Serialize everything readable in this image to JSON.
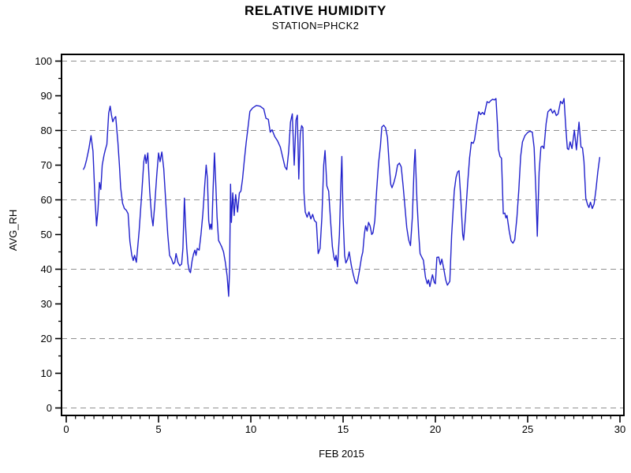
{
  "window": {
    "background": "#ffffff"
  },
  "chart_data": {
    "type": "line",
    "title": "RELATIVE HUMIDITY",
    "subtitle": "STATION=PHCK2",
    "xlabel": "FEB 2015",
    "ylabel": "AVG_RH",
    "xlim": [
      0,
      30
    ],
    "ylim": [
      0,
      100
    ],
    "x_major_ticks": [
      0,
      5,
      10,
      15,
      20,
      25,
      30
    ],
    "x_major_tick_labels": [
      "0",
      "5",
      "10",
      "15",
      "20",
      "25",
      "30"
    ],
    "x_minor_tick_step": 0.5,
    "y_major_ticks": [
      0,
      10,
      20,
      30,
      40,
      50,
      60,
      70,
      80,
      90,
      100
    ],
    "y_major_tick_labels": [
      "0",
      "10",
      "20",
      "30",
      "40",
      "50",
      "60",
      "70",
      "80",
      "90",
      "100"
    ],
    "y_minor_tick_step": 5,
    "y_gridlines": [
      0,
      20,
      40,
      60,
      80,
      100
    ],
    "grid_style": "dashed",
    "legend": "none",
    "colors": {
      "line": "#2222cc",
      "grid": "#909090",
      "axis": "#000000",
      "text": "#000000",
      "background": "#ffffff"
    },
    "series": [
      {
        "name": "AVG_RH",
        "x_unit": "day of FEB 2015",
        "points": [
          [
            0.93,
            68.8
          ],
          [
            1.0,
            69.5
          ],
          [
            1.1,
            71.5
          ],
          [
            1.22,
            74.5
          ],
          [
            1.34,
            78.5
          ],
          [
            1.45,
            74.0
          ],
          [
            1.55,
            61.0
          ],
          [
            1.64,
            52.5
          ],
          [
            1.72,
            57.0
          ],
          [
            1.8,
            65.0
          ],
          [
            1.87,
            63.0
          ],
          [
            1.95,
            70.0
          ],
          [
            2.05,
            73.0
          ],
          [
            2.12,
            74.5
          ],
          [
            2.2,
            76.0
          ],
          [
            2.3,
            85.0
          ],
          [
            2.38,
            87.0
          ],
          [
            2.45,
            84.5
          ],
          [
            2.52,
            82.5
          ],
          [
            2.6,
            83.5
          ],
          [
            2.68,
            84.0
          ],
          [
            2.8,
            76.5
          ],
          [
            2.88,
            70.0
          ],
          [
            2.95,
            63.5
          ],
          [
            3.05,
            59.0
          ],
          [
            3.15,
            57.5
          ],
          [
            3.25,
            57.0
          ],
          [
            3.35,
            56.0
          ],
          [
            3.45,
            48.0
          ],
          [
            3.55,
            44.0
          ],
          [
            3.63,
            42.5
          ],
          [
            3.7,
            44.0
          ],
          [
            3.8,
            42.0
          ],
          [
            3.95,
            51.0
          ],
          [
            4.1,
            62.5
          ],
          [
            4.2,
            71.0
          ],
          [
            4.27,
            73.0
          ],
          [
            4.33,
            70.5
          ],
          [
            4.42,
            73.5
          ],
          [
            4.52,
            62.5
          ],
          [
            4.62,
            55.5
          ],
          [
            4.7,
            52.5
          ],
          [
            4.8,
            59.0
          ],
          [
            4.9,
            67.0
          ],
          [
            5.0,
            73.5
          ],
          [
            5.08,
            71.0
          ],
          [
            5.18,
            73.8
          ],
          [
            5.28,
            69.0
          ],
          [
            5.35,
            63.0
          ],
          [
            5.42,
            57.0
          ],
          [
            5.5,
            50.0
          ],
          [
            5.6,
            44.0
          ],
          [
            5.7,
            43.0
          ],
          [
            5.8,
            41.5
          ],
          [
            5.88,
            42.0
          ],
          [
            5.95,
            44.5
          ],
          [
            6.05,
            42.0
          ],
          [
            6.15,
            41.0
          ],
          [
            6.25,
            41.5
          ],
          [
            6.32,
            46.0
          ],
          [
            6.4,
            60.5
          ],
          [
            6.47,
            52.0
          ],
          [
            6.53,
            46.0
          ],
          [
            6.6,
            41.5
          ],
          [
            6.67,
            39.5
          ],
          [
            6.73,
            39.0
          ],
          [
            6.82,
            42.5
          ],
          [
            6.9,
            44.5
          ],
          [
            6.97,
            45.5
          ],
          [
            7.03,
            44.0
          ],
          [
            7.1,
            46.0
          ],
          [
            7.2,
            45.5
          ],
          [
            7.3,
            50.0
          ],
          [
            7.4,
            56.0
          ],
          [
            7.5,
            64.0
          ],
          [
            7.58,
            70.0
          ],
          [
            7.65,
            66.0
          ],
          [
            7.72,
            54.0
          ],
          [
            7.78,
            51.5
          ],
          [
            7.83,
            53.0
          ],
          [
            7.89,
            51.5
          ],
          [
            7.95,
            62.0
          ],
          [
            8.03,
            73.5
          ],
          [
            8.1,
            65.0
          ],
          [
            8.17,
            55.0
          ],
          [
            8.25,
            48.3
          ],
          [
            8.33,
            47.5
          ],
          [
            8.42,
            46.5
          ],
          [
            8.52,
            45.0
          ],
          [
            8.62,
            42.0
          ],
          [
            8.72,
            38.0
          ],
          [
            8.8,
            32.2
          ],
          [
            8.85,
            40.0
          ],
          [
            8.9,
            64.5
          ],
          [
            8.95,
            53.5
          ],
          [
            9.02,
            62.0
          ],
          [
            9.1,
            55.5
          ],
          [
            9.18,
            61.5
          ],
          [
            9.28,
            56.5
          ],
          [
            9.38,
            62.0
          ],
          [
            9.46,
            62.5
          ],
          [
            9.55,
            66.0
          ],
          [
            9.65,
            71.5
          ],
          [
            9.75,
            76.5
          ],
          [
            9.85,
            81.0
          ],
          [
            9.95,
            85.5
          ],
          [
            10.1,
            86.5
          ],
          [
            10.3,
            87.2
          ],
          [
            10.5,
            87.0
          ],
          [
            10.7,
            86.2
          ],
          [
            10.82,
            83.5
          ],
          [
            10.95,
            83.2
          ],
          [
            11.05,
            79.5
          ],
          [
            11.15,
            80.2
          ],
          [
            11.3,
            78.2
          ],
          [
            11.45,
            77.0
          ],
          [
            11.6,
            75.2
          ],
          [
            11.72,
            72.5
          ],
          [
            11.85,
            69.5
          ],
          [
            11.95,
            68.7
          ],
          [
            12.05,
            74.0
          ],
          [
            12.15,
            82.4
          ],
          [
            12.25,
            84.8
          ],
          [
            12.35,
            70.0
          ],
          [
            12.45,
            83.0
          ],
          [
            12.52,
            84.4
          ],
          [
            12.6,
            66.0
          ],
          [
            12.68,
            79.0
          ],
          [
            12.75,
            81.4
          ],
          [
            12.82,
            80.8
          ],
          [
            12.88,
            62.0
          ],
          [
            12.95,
            56.5
          ],
          [
            13.05,
            55.0
          ],
          [
            13.15,
            56.5
          ],
          [
            13.25,
            54.5
          ],
          [
            13.35,
            55.8
          ],
          [
            13.45,
            54.0
          ],
          [
            13.55,
            53.5
          ],
          [
            13.65,
            44.5
          ],
          [
            13.75,
            46.0
          ],
          [
            13.85,
            55.0
          ],
          [
            13.95,
            70.0
          ],
          [
            14.02,
            74.2
          ],
          [
            14.12,
            64.0
          ],
          [
            14.22,
            62.5
          ],
          [
            14.32,
            54.0
          ],
          [
            14.42,
            46.5
          ],
          [
            14.5,
            43.5
          ],
          [
            14.56,
            42.5
          ],
          [
            14.62,
            44.0
          ],
          [
            14.7,
            40.7
          ],
          [
            14.8,
            50.0
          ],
          [
            14.88,
            65.0
          ],
          [
            14.93,
            72.5
          ],
          [
            15.0,
            55.0
          ],
          [
            15.08,
            44.0
          ],
          [
            15.15,
            41.8
          ],
          [
            15.25,
            43.0
          ],
          [
            15.33,
            45.0
          ],
          [
            15.45,
            41.0
          ],
          [
            15.55,
            38.5
          ],
          [
            15.65,
            36.5
          ],
          [
            15.75,
            35.8
          ],
          [
            15.88,
            39.5
          ],
          [
            16.0,
            43.5
          ],
          [
            16.07,
            45.0
          ],
          [
            16.15,
            50.0
          ],
          [
            16.22,
            52.5
          ],
          [
            16.3,
            51.0
          ],
          [
            16.38,
            53.5
          ],
          [
            16.46,
            52.5
          ],
          [
            16.55,
            50.0
          ],
          [
            16.62,
            50.5
          ],
          [
            16.72,
            54.0
          ],
          [
            16.82,
            63.0
          ],
          [
            16.92,
            70.5
          ],
          [
            17.02,
            75.5
          ],
          [
            17.1,
            81.0
          ],
          [
            17.2,
            81.5
          ],
          [
            17.3,
            80.8
          ],
          [
            17.4,
            78.0
          ],
          [
            17.5,
            70.0
          ],
          [
            17.58,
            64.5
          ],
          [
            17.65,
            63.5
          ],
          [
            17.75,
            65.0
          ],
          [
            17.85,
            67.0
          ],
          [
            17.95,
            70.0
          ],
          [
            18.05,
            70.6
          ],
          [
            18.15,
            69.5
          ],
          [
            18.25,
            64.0
          ],
          [
            18.35,
            58.0
          ],
          [
            18.45,
            52.0
          ],
          [
            18.55,
            48.5
          ],
          [
            18.65,
            46.8
          ],
          [
            18.75,
            55.0
          ],
          [
            18.85,
            70.0
          ],
          [
            18.9,
            74.5
          ],
          [
            19.0,
            60.0
          ],
          [
            19.1,
            50.0
          ],
          [
            19.17,
            44.5
          ],
          [
            19.27,
            43.4
          ],
          [
            19.35,
            42.6
          ],
          [
            19.46,
            37.7
          ],
          [
            19.56,
            35.8
          ],
          [
            19.63,
            36.9
          ],
          [
            19.7,
            35.0
          ],
          [
            19.84,
            38.4
          ],
          [
            19.94,
            36.2
          ],
          [
            20.0,
            35.8
          ],
          [
            20.08,
            43.4
          ],
          [
            20.18,
            43.5
          ],
          [
            20.27,
            41.3
          ],
          [
            20.35,
            42.9
          ],
          [
            20.46,
            39.9
          ],
          [
            20.56,
            36.9
          ],
          [
            20.65,
            35.4
          ],
          [
            20.78,
            36.5
          ],
          [
            20.88,
            49.8
          ],
          [
            20.95,
            56.0
          ],
          [
            21.02,
            62.5
          ],
          [
            21.12,
            66.5
          ],
          [
            21.2,
            68.0
          ],
          [
            21.28,
            68.4
          ],
          [
            21.38,
            60.0
          ],
          [
            21.48,
            50.0
          ],
          [
            21.53,
            48.4
          ],
          [
            21.63,
            55.0
          ],
          [
            21.75,
            65.0
          ],
          [
            21.85,
            72.0
          ],
          [
            21.95,
            76.6
          ],
          [
            22.05,
            76.3
          ],
          [
            22.12,
            77.3
          ],
          [
            22.25,
            82.0
          ],
          [
            22.35,
            85.4
          ],
          [
            22.45,
            84.6
          ],
          [
            22.55,
            85.2
          ],
          [
            22.65,
            84.6
          ],
          [
            22.8,
            88.3
          ],
          [
            22.9,
            88.0
          ],
          [
            23.0,
            88.6
          ],
          [
            23.1,
            89.0
          ],
          [
            23.2,
            88.8
          ],
          [
            23.28,
            89.2
          ],
          [
            23.36,
            82.0
          ],
          [
            23.42,
            74.5
          ],
          [
            23.5,
            72.5
          ],
          [
            23.58,
            72.0
          ],
          [
            23.68,
            56.0
          ],
          [
            23.76,
            56.2
          ],
          [
            23.82,
            54.8
          ],
          [
            23.88,
            55.5
          ],
          [
            24.0,
            51.0
          ],
          [
            24.1,
            48.2
          ],
          [
            24.2,
            47.5
          ],
          [
            24.3,
            48.5
          ],
          [
            24.42,
            55.0
          ],
          [
            24.52,
            63.0
          ],
          [
            24.62,
            72.5
          ],
          [
            24.72,
            76.7
          ],
          [
            24.85,
            78.5
          ],
          [
            25.0,
            79.4
          ],
          [
            25.12,
            79.8
          ],
          [
            25.25,
            79.5
          ],
          [
            25.35,
            75.0
          ],
          [
            25.45,
            62.0
          ],
          [
            25.52,
            49.5
          ],
          [
            25.62,
            68.0
          ],
          [
            25.72,
            75.2
          ],
          [
            25.8,
            75.5
          ],
          [
            25.88,
            74.8
          ],
          [
            26.0,
            82.0
          ],
          [
            26.1,
            85.4
          ],
          [
            26.25,
            86.2
          ],
          [
            26.35,
            85.0
          ],
          [
            26.45,
            85.8
          ],
          [
            26.55,
            84.3
          ],
          [
            26.65,
            84.8
          ],
          [
            26.78,
            88.4
          ],
          [
            26.88,
            87.7
          ],
          [
            26.97,
            89.2
          ],
          [
            27.06,
            81.3
          ],
          [
            27.15,
            74.8
          ],
          [
            27.22,
            74.5
          ],
          [
            27.3,
            76.7
          ],
          [
            27.4,
            74.8
          ],
          [
            27.53,
            80.1
          ],
          [
            27.64,
            74.4
          ],
          [
            27.78,
            82.4
          ],
          [
            27.89,
            75.2
          ],
          [
            27.97,
            75.0
          ],
          [
            28.05,
            71.0
          ],
          [
            28.15,
            60.4
          ],
          [
            28.25,
            58.6
          ],
          [
            28.32,
            57.8
          ],
          [
            28.4,
            59.3
          ],
          [
            28.5,
            57.5
          ],
          [
            28.6,
            58.8
          ],
          [
            28.7,
            63.0
          ],
          [
            28.8,
            68.0
          ],
          [
            28.9,
            72.2
          ]
        ]
      }
    ]
  }
}
